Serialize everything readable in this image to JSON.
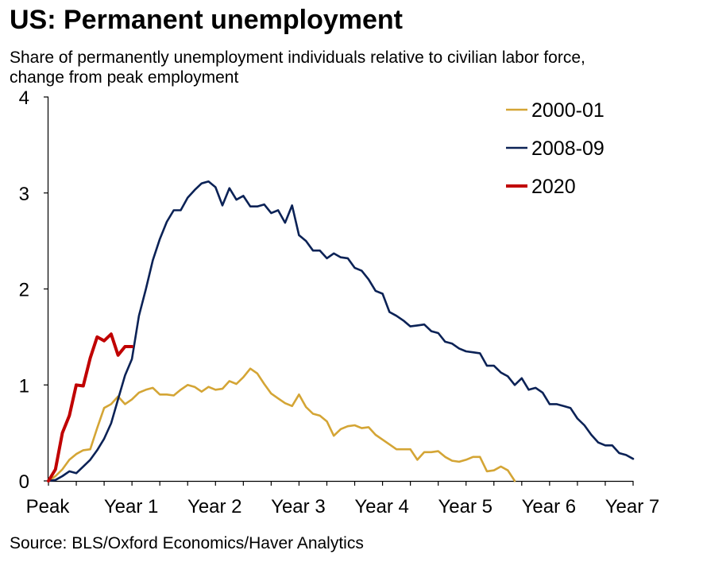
{
  "title": "US: Permanent unemployment",
  "subtitle_line1": "Share of permanently unemployment individuals relative to civilian labor force,",
  "subtitle_line2": "change from peak employment",
  "source": "Source: BLS/Oxford Economics/Haver Analytics",
  "colors": {
    "s2000": "#D4A535",
    "s2008": "#0B2256",
    "s2020": "#C00000",
    "axis": "#000000"
  },
  "chart_data": {
    "type": "line",
    "title": "US: Permanent unemployment",
    "xlabel": "",
    "ylabel": "",
    "x_unit": "months from peak employment",
    "xlim": [
      0,
      84
    ],
    "ylim": [
      0,
      4
    ],
    "yticks": [
      0,
      1,
      2,
      3,
      4
    ],
    "xtick_labels": [
      {
        "month": 0,
        "label": "Peak"
      },
      {
        "month": 12,
        "label": "Year 1"
      },
      {
        "month": 24,
        "label": "Year 2"
      },
      {
        "month": 36,
        "label": "Year 3"
      },
      {
        "month": 48,
        "label": "Year 4"
      },
      {
        "month": 60,
        "label": "Year 5"
      },
      {
        "month": 72,
        "label": "Year 6"
      },
      {
        "month": 84,
        "label": "Year 7"
      }
    ],
    "grid": false,
    "legend_position": "top-right",
    "series": [
      {
        "name": "2000-01",
        "color_key": "s2000",
        "values": [
          0,
          0.05,
          0.12,
          0.22,
          0.28,
          0.32,
          0.33,
          0.55,
          0.76,
          0.8,
          0.88,
          0.8,
          0.85,
          0.92,
          0.95,
          0.97,
          0.9,
          0.9,
          0.89,
          0.95,
          1.0,
          0.98,
          0.93,
          0.98,
          0.95,
          0.96,
          1.04,
          1.01,
          1.08,
          1.17,
          1.12,
          1.01,
          0.91,
          0.86,
          0.81,
          0.78,
          0.9,
          0.77,
          0.7,
          0.68,
          0.62,
          0.47,
          0.54,
          0.57,
          0.58,
          0.55,
          0.56,
          0.48,
          0.43,
          0.38,
          0.33,
          0.33,
          0.33,
          0.22,
          0.3,
          0.3,
          0.31,
          0.25,
          0.21,
          0.2,
          0.22,
          0.25,
          0.25,
          0.1,
          0.11,
          0.15,
          0.11,
          0.0
        ]
      },
      {
        "name": "2008-09",
        "color_key": "s2008",
        "values": [
          0,
          0.01,
          0.05,
          0.1,
          0.08,
          0.15,
          0.22,
          0.32,
          0.44,
          0.6,
          0.85,
          1.1,
          1.27,
          1.72,
          2.0,
          2.3,
          2.52,
          2.7,
          2.82,
          2.82,
          2.95,
          3.03,
          3.1,
          3.12,
          3.06,
          2.87,
          3.05,
          2.93,
          2.97,
          2.86,
          2.86,
          2.88,
          2.79,
          2.82,
          2.69,
          2.87,
          2.56,
          2.5,
          2.4,
          2.4,
          2.32,
          2.37,
          2.33,
          2.32,
          2.22,
          2.19,
          2.1,
          1.98,
          1.95,
          1.76,
          1.72,
          1.67,
          1.61,
          1.62,
          1.63,
          1.56,
          1.54,
          1.45,
          1.43,
          1.38,
          1.35,
          1.34,
          1.33,
          1.2,
          1.2,
          1.13,
          1.09,
          1.0,
          1.07,
          0.95,
          0.97,
          0.92,
          0.8,
          0.8,
          0.78,
          0.76,
          0.65,
          0.58,
          0.48,
          0.4,
          0.37,
          0.37,
          0.29,
          0.27,
          0.23
        ]
      },
      {
        "name": "2020",
        "color_key": "s2020",
        "values": [
          0,
          0.12,
          0.5,
          0.68,
          1.0,
          0.99,
          1.28,
          1.5,
          1.46,
          1.53,
          1.31,
          1.4,
          1.4
        ]
      }
    ]
  }
}
